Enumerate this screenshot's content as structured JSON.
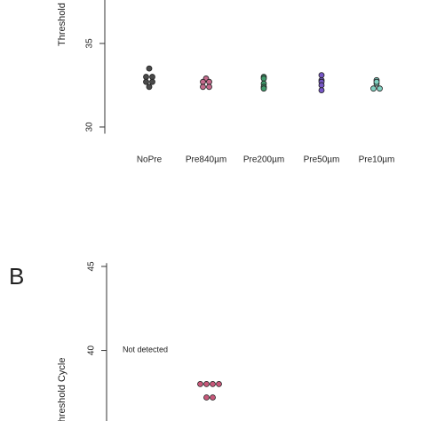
{
  "chart_data": [
    {
      "type": "strip",
      "ylabel": "Threshold Cycle",
      "categories": [
        "NoPre",
        "Pre840µm",
        "Pre200µm",
        "Pre50µm",
        "Pre10µm"
      ],
      "colors": [
        "#4a4a4a",
        "#c46a8c",
        "#3f9a6b",
        "#7656c6",
        "#7fd0c0"
      ],
      "values": [
        [
          33.5,
          33.0,
          33.0,
          32.7,
          32.7,
          32.4
        ],
        [
          32.9,
          32.7,
          32.7,
          32.4,
          32.4
        ],
        [
          33.0,
          32.9,
          32.6,
          32.4,
          32.3
        ],
        [
          33.1,
          32.8,
          32.7,
          32.5,
          32.2
        ],
        [
          32.8,
          32.6,
          32.7,
          32.3,
          32.3
        ]
      ],
      "ylim": [
        29.6,
        37.6
      ],
      "yticks": [
        30,
        35
      ]
    },
    {
      "type": "strip",
      "panel_label": "B",
      "ylabel": "Threshold Cycle",
      "annotation": "Not detected",
      "color": "#c8587a",
      "values": [
        38.0,
        38.0,
        38.0,
        38.0,
        37.2,
        37.2
      ],
      "ylim": [
        35.8,
        45.2
      ],
      "yticks": [
        40,
        45
      ]
    }
  ]
}
